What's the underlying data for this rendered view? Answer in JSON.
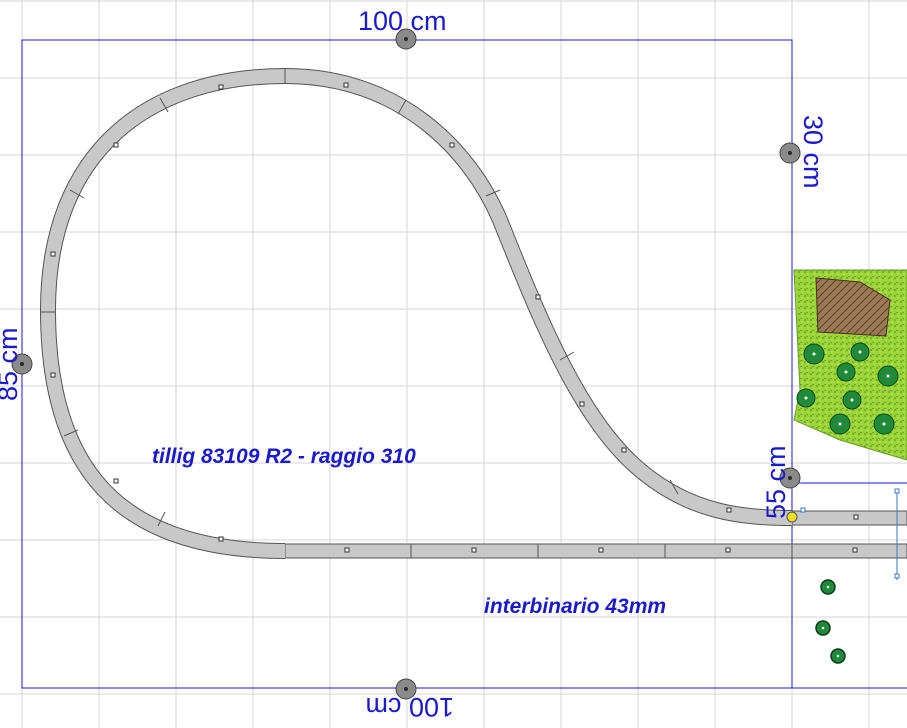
{
  "dimensions": {
    "top": "100 cm",
    "bottom": "100 cm",
    "left": "85 cm",
    "right_upper": "30 cm",
    "right_lower": "55 cm"
  },
  "annotations": {
    "track_note": "tillig 83109 R2 - raggio 310",
    "spacing_note": "interbinario 43mm"
  },
  "colors": {
    "grid": "#d6d6d6",
    "outline": "#1a1acc",
    "track_fill": "#c8c8c8",
    "track_edge": "#555555",
    "handle": "#7a7a7a",
    "grass": "#8fcf30",
    "rock": "#8a6a4a",
    "bush": "#1f8a3a"
  }
}
